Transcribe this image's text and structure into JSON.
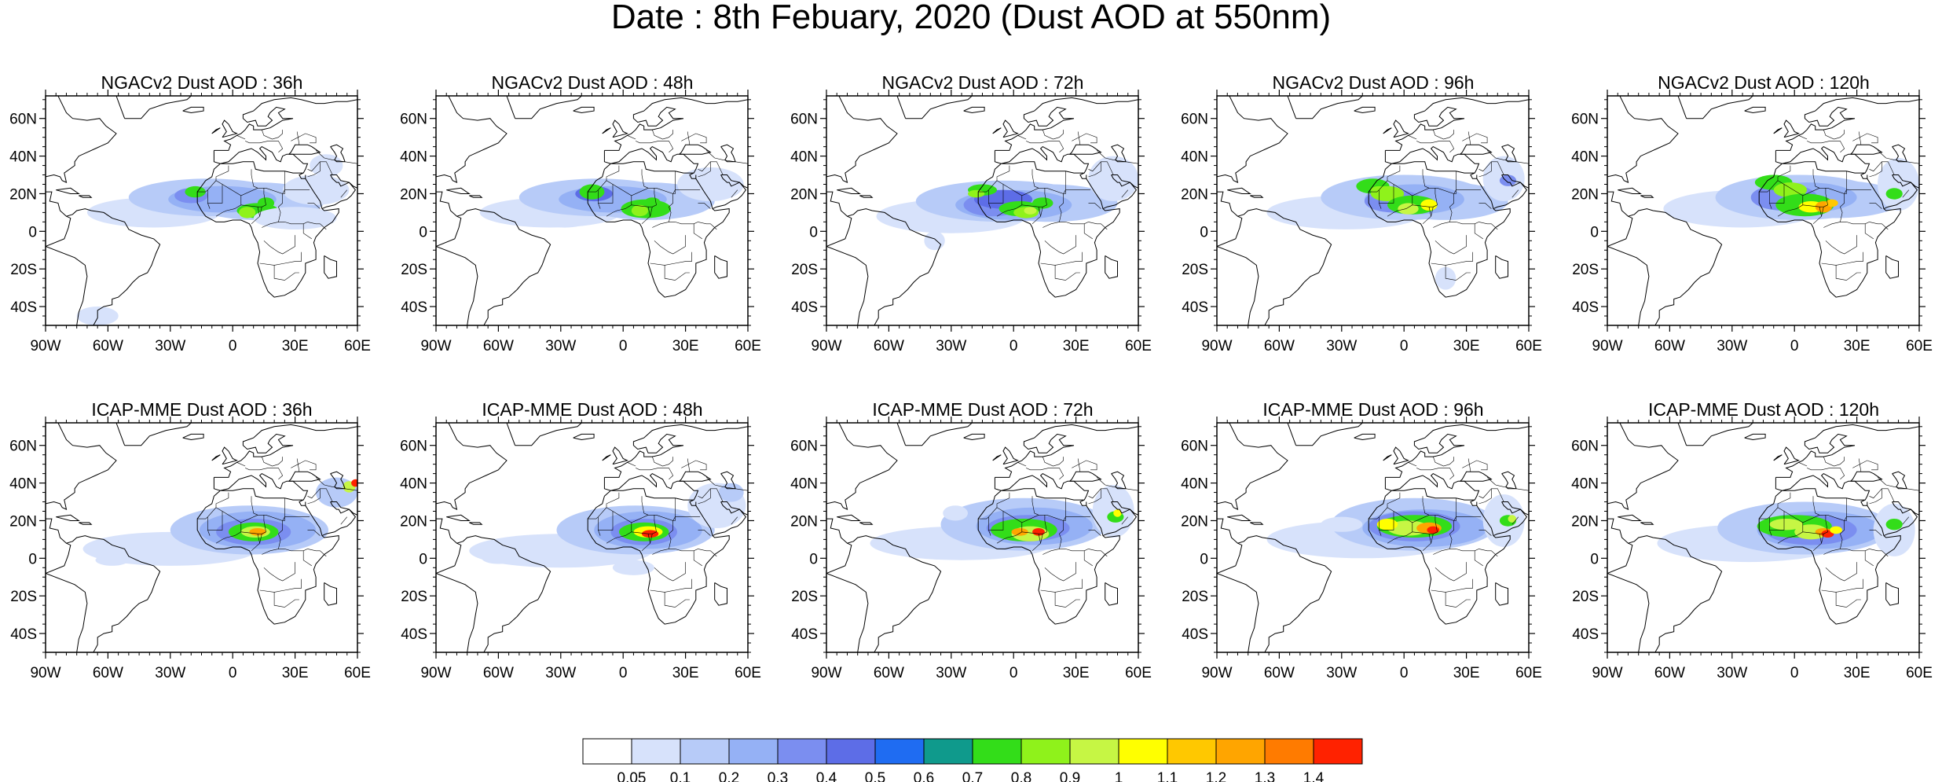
{
  "title": "Date : 8th Febuary, 2020 (Dust AOD at 550nm)",
  "panels": [
    {
      "title": "NGACv2 Dust AOD : 36h"
    },
    {
      "title": "NGACv2 Dust AOD : 48h"
    },
    {
      "title": "NGACv2 Dust AOD : 72h"
    },
    {
      "title": "NGACv2 Dust AOD : 96h"
    },
    {
      "title": "NGACv2 Dust AOD : 120h"
    },
    {
      "title": "ICAP-MME Dust AOD : 36h"
    },
    {
      "title": "ICAP-MME Dust AOD : 48h"
    },
    {
      "title": "ICAP-MME Dust AOD : 72h"
    },
    {
      "title": "ICAP-MME Dust AOD : 96h"
    },
    {
      "title": "ICAP-MME Dust AOD : 120h"
    }
  ],
  "axes": {
    "lon_labels": [
      "90W",
      "60W",
      "30W",
      "0",
      "30E",
      "60E"
    ],
    "lat_labels": [
      "60N",
      "40N",
      "20N",
      "0",
      "20S",
      "40S"
    ],
    "lon_values": [
      -90,
      -60,
      -30,
      0,
      30,
      60
    ],
    "lat_values": [
      60,
      40,
      20,
      0,
      -20,
      -40
    ],
    "lon_range": [
      -90,
      60
    ],
    "lat_range": [
      -50,
      72
    ]
  },
  "colorbar": {
    "labels": [
      "0.05",
      "0.1",
      "0.2",
      "0.3",
      "0.4",
      "0.5",
      "0.6",
      "0.7",
      "0.8",
      "0.9",
      "1",
      "1.1",
      "1.2",
      "1.3",
      "1.4"
    ],
    "colors": [
      "#ffffff",
      "#d7e2fb",
      "#b7cbf8",
      "#95b1f5",
      "#7b8ef0",
      "#5d6de7",
      "#1f6cf2",
      "#0f9a8c",
      "#33dd19",
      "#8ff21b",
      "#c6f644",
      "#ffff00",
      "#ffc800",
      "#ffa500",
      "#ff7b00",
      "#ff2200"
    ]
  }
}
